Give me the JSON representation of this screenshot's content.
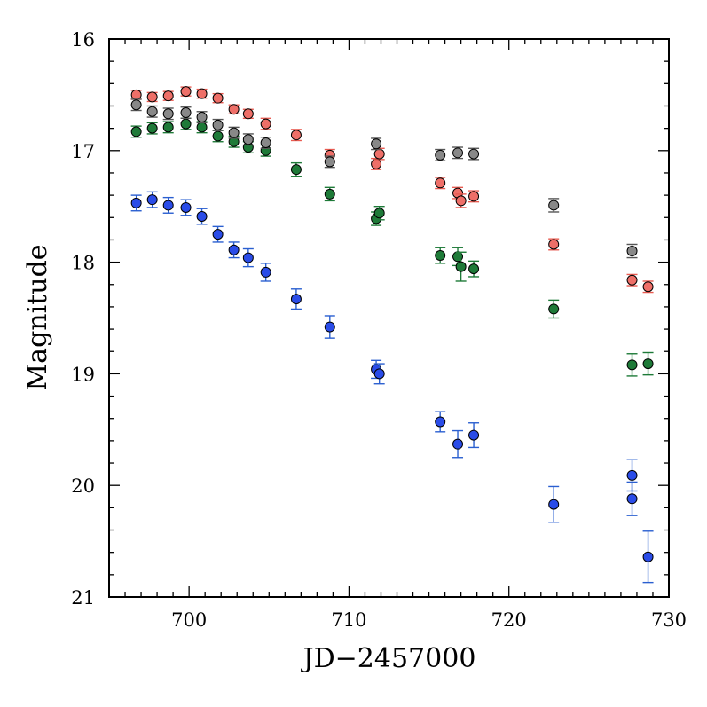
{
  "chart_data": {
    "type": "scatter",
    "title": "",
    "xlabel": "JD−2457000",
    "ylabel": "Magnitude",
    "xlim": [
      695,
      730
    ],
    "ylim": [
      16,
      21
    ],
    "y_inverted": true,
    "x_ticks": [
      700,
      710,
      720,
      730
    ],
    "y_ticks": [
      16,
      17,
      18,
      19,
      20,
      21
    ],
    "x_tick_labels": [
      "700",
      "710",
      "720",
      "730"
    ],
    "y_tick_labels": [
      "16",
      "17",
      "18",
      "19",
      "20",
      "21"
    ],
    "series": [
      {
        "name": "blue",
        "color": "#2a4ce8",
        "errcolor": "#2a5fd0",
        "points": [
          {
            "x": 696.7,
            "y": 17.47,
            "err": 0.07
          },
          {
            "x": 697.7,
            "y": 17.44,
            "err": 0.07
          },
          {
            "x": 698.7,
            "y": 17.49,
            "err": 0.07
          },
          {
            "x": 699.8,
            "y": 17.51,
            "err": 0.07
          },
          {
            "x": 700.8,
            "y": 17.59,
            "err": 0.07
          },
          {
            "x": 701.8,
            "y": 17.75,
            "err": 0.07
          },
          {
            "x": 702.8,
            "y": 17.89,
            "err": 0.07
          },
          {
            "x": 703.7,
            "y": 17.96,
            "err": 0.08
          },
          {
            "x": 704.8,
            "y": 18.09,
            "err": 0.08
          },
          {
            "x": 706.7,
            "y": 18.33,
            "err": 0.09
          },
          {
            "x": 708.8,
            "y": 18.58,
            "err": 0.1
          },
          {
            "x": 711.7,
            "y": 18.96,
            "err": 0.08
          },
          {
            "x": 711.9,
            "y": 19.0,
            "err": 0.09
          },
          {
            "x": 715.7,
            "y": 19.43,
            "err": 0.09
          },
          {
            "x": 716.8,
            "y": 19.63,
            "err": 0.12
          },
          {
            "x": 717.8,
            "y": 19.55,
            "err": 0.11
          },
          {
            "x": 722.8,
            "y": 20.17,
            "err": 0.16
          },
          {
            "x": 727.7,
            "y": 19.91,
            "err": 0.14
          },
          {
            "x": 727.7,
            "y": 20.12,
            "err": 0.15
          },
          {
            "x": 728.7,
            "y": 20.64,
            "err": 0.23
          }
        ]
      },
      {
        "name": "green",
        "color": "#1e7a38",
        "errcolor": "#1e7a38",
        "points": [
          {
            "x": 696.7,
            "y": 16.83,
            "err": 0.05
          },
          {
            "x": 697.7,
            "y": 16.8,
            "err": 0.05
          },
          {
            "x": 698.7,
            "y": 16.79,
            "err": 0.05
          },
          {
            "x": 699.8,
            "y": 16.76,
            "err": 0.05
          },
          {
            "x": 700.8,
            "y": 16.79,
            "err": 0.05
          },
          {
            "x": 701.8,
            "y": 16.87,
            "err": 0.05
          },
          {
            "x": 702.8,
            "y": 16.92,
            "err": 0.05
          },
          {
            "x": 703.7,
            "y": 16.97,
            "err": 0.05
          },
          {
            "x": 704.8,
            "y": 17.0,
            "err": 0.05
          },
          {
            "x": 706.7,
            "y": 17.17,
            "err": 0.06
          },
          {
            "x": 708.8,
            "y": 17.39,
            "err": 0.06
          },
          {
            "x": 711.7,
            "y": 17.61,
            "err": 0.06
          },
          {
            "x": 711.9,
            "y": 17.56,
            "err": 0.06
          },
          {
            "x": 715.7,
            "y": 17.94,
            "err": 0.07
          },
          {
            "x": 716.8,
            "y": 17.95,
            "err": 0.08
          },
          {
            "x": 717.0,
            "y": 18.04,
            "err": 0.13
          },
          {
            "x": 717.8,
            "y": 18.06,
            "err": 0.07
          },
          {
            "x": 722.8,
            "y": 18.42,
            "err": 0.08
          },
          {
            "x": 727.7,
            "y": 18.92,
            "err": 0.1
          },
          {
            "x": 728.7,
            "y": 18.91,
            "err": 0.1
          }
        ]
      },
      {
        "name": "red",
        "color": "#ee6f68",
        "errcolor": "#e85a50",
        "points": [
          {
            "x": 696.7,
            "y": 16.5,
            "err": 0.04
          },
          {
            "x": 697.7,
            "y": 16.52,
            "err": 0.04
          },
          {
            "x": 698.7,
            "y": 16.51,
            "err": 0.04
          },
          {
            "x": 699.8,
            "y": 16.47,
            "err": 0.04
          },
          {
            "x": 700.8,
            "y": 16.49,
            "err": 0.04
          },
          {
            "x": 701.8,
            "y": 16.53,
            "err": 0.04
          },
          {
            "x": 702.8,
            "y": 16.63,
            "err": 0.04
          },
          {
            "x": 703.7,
            "y": 16.67,
            "err": 0.04
          },
          {
            "x": 704.8,
            "y": 16.76,
            "err": 0.05
          },
          {
            "x": 706.7,
            "y": 16.86,
            "err": 0.05
          },
          {
            "x": 708.8,
            "y": 17.04,
            "err": 0.05
          },
          {
            "x": 711.7,
            "y": 17.12,
            "err": 0.05
          },
          {
            "x": 711.9,
            "y": 17.03,
            "err": 0.05
          },
          {
            "x": 715.7,
            "y": 17.29,
            "err": 0.05
          },
          {
            "x": 716.8,
            "y": 17.38,
            "err": 0.05
          },
          {
            "x": 717.0,
            "y": 17.45,
            "err": 0.06
          },
          {
            "x": 717.8,
            "y": 17.41,
            "err": 0.05
          },
          {
            "x": 722.8,
            "y": 17.84,
            "err": 0.05
          },
          {
            "x": 727.7,
            "y": 18.16,
            "err": 0.05
          },
          {
            "x": 728.7,
            "y": 18.22,
            "err": 0.05
          }
        ]
      },
      {
        "name": "gray",
        "color": "#888888",
        "errcolor": "#555555",
        "points": [
          {
            "x": 696.7,
            "y": 16.59,
            "err": 0.05
          },
          {
            "x": 697.7,
            "y": 16.65,
            "err": 0.05
          },
          {
            "x": 698.7,
            "y": 16.67,
            "err": 0.05
          },
          {
            "x": 699.8,
            "y": 16.66,
            "err": 0.05
          },
          {
            "x": 700.8,
            "y": 16.7,
            "err": 0.05
          },
          {
            "x": 701.8,
            "y": 16.77,
            "err": 0.05
          },
          {
            "x": 702.8,
            "y": 16.84,
            "err": 0.05
          },
          {
            "x": 703.7,
            "y": 16.9,
            "err": 0.05
          },
          {
            "x": 704.8,
            "y": 16.93,
            "err": 0.05
          },
          {
            "x": 708.8,
            "y": 17.1,
            "err": 0.05
          },
          {
            "x": 711.7,
            "y": 16.94,
            "err": 0.05
          },
          {
            "x": 715.7,
            "y": 17.04,
            "err": 0.05
          },
          {
            "x": 716.8,
            "y": 17.02,
            "err": 0.05
          },
          {
            "x": 717.8,
            "y": 17.03,
            "err": 0.05
          },
          {
            "x": 722.8,
            "y": 17.49,
            "err": 0.06
          },
          {
            "x": 727.7,
            "y": 17.9,
            "err": 0.06
          }
        ]
      }
    ]
  }
}
